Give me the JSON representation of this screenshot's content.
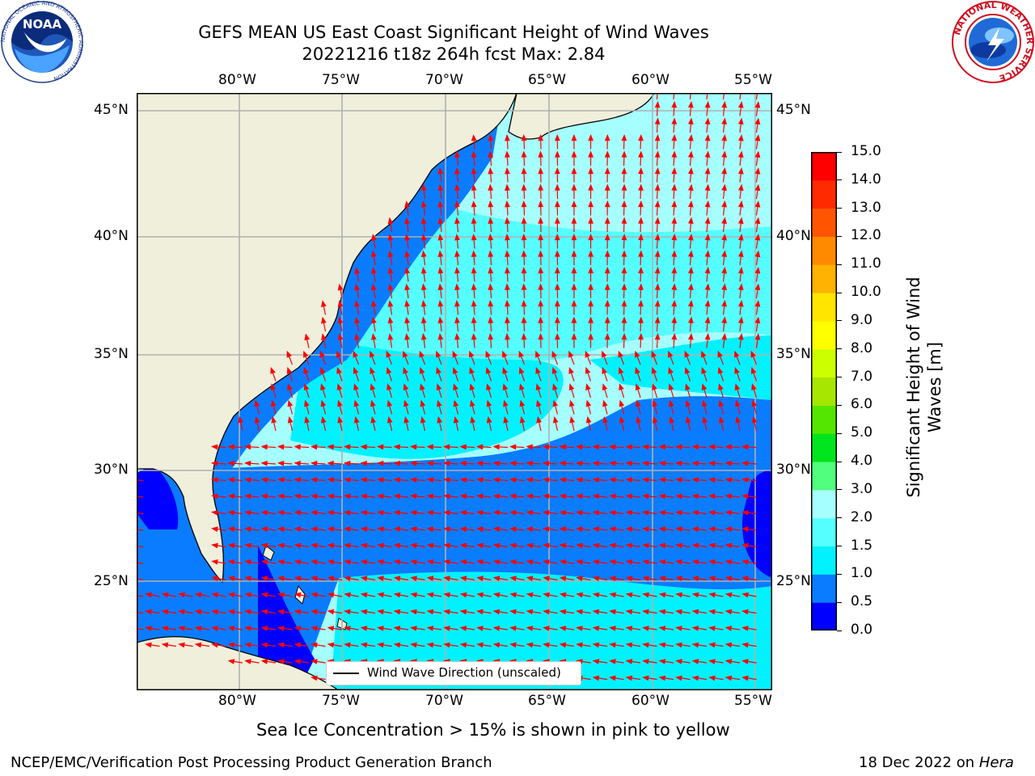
{
  "header": {
    "title_line1": "GEFS MEAN US East Coast Significant Height of Wind Waves",
    "title_line2": "20221216 t18z 264h fcst   Max: 2.84"
  },
  "logos": {
    "left": {
      "text": "NOAA",
      "ring_text": "NATIONAL OCEANIC AND ATMOSPHERIC ADMINISTRATION",
      "ring_text_bottom": "U.S. DEPARTMENT OF COMMERCE"
    },
    "right": {
      "ring_text": "NATIONAL WEATHER SERVICE"
    }
  },
  "map": {
    "lon_ticks": [
      "80°W",
      "75°W",
      "70°W",
      "65°W",
      "60°W",
      "55°W"
    ],
    "lat_ticks": [
      "45°N",
      "40°N",
      "35°N",
      "30°N",
      "25°N"
    ],
    "legend_label": "Wind Wave Direction (unscaled)",
    "colors": {
      "land": "#efefdc",
      "grid": "#b0b0b0",
      "arrow": "#ff0000"
    }
  },
  "colorbar": {
    "label": "Significant Height of Wind Waves [m]",
    "label_line1": "Significant Height of Wind",
    "label_line2": "Waves [m]",
    "ticks": [
      "0.0",
      "0.5",
      "1.0",
      "1.5",
      "2.0",
      "3.0",
      "4.0",
      "5.0",
      "6.0",
      "7.0",
      "8.0",
      "9.0",
      "10.0",
      "11.0",
      "12.0",
      "13.0",
      "14.0",
      "15.0"
    ],
    "colors": [
      "#0000ff",
      "#0a7cff",
      "#00f2ff",
      "#55ffff",
      "#a6ffff",
      "#51fe7d",
      "#00e51e",
      "#55e600",
      "#a6e600",
      "#ccff00",
      "#ffff00",
      "#ffe500",
      "#ffb200",
      "#ff8a00",
      "#ff5500",
      "#ff2a00",
      "#ff0000"
    ]
  },
  "notes": {
    "sea_ice": "Sea Ice Concentration > 15% is shown in pink to yellow",
    "branch": "NCEP/EMC/Verification Post Processing Product Generation Branch",
    "date_prefix": "18 Dec 2022 on",
    "machine": "Hera"
  }
}
